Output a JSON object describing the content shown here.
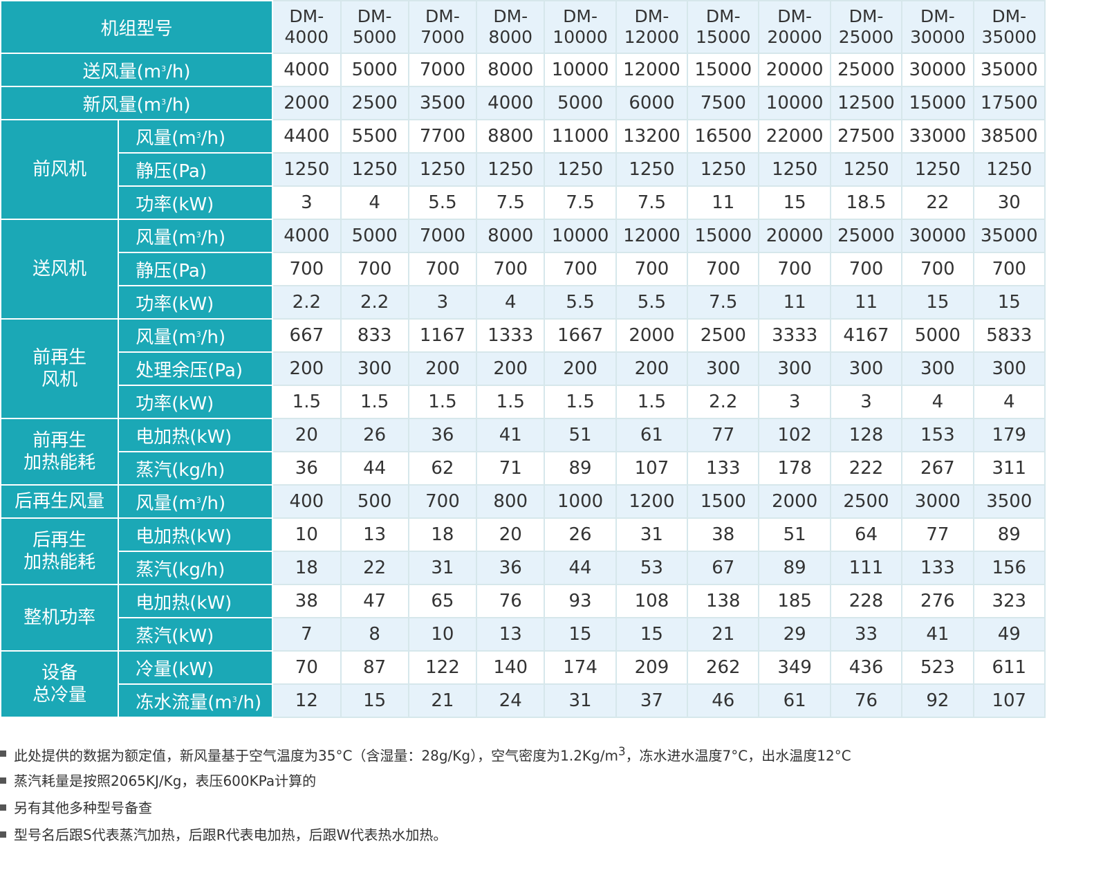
{
  "table": {
    "corner_label": "机组型号",
    "models": [
      {
        "prefix": "DM-",
        "number": "4000"
      },
      {
        "prefix": "DM-",
        "number": "5000"
      },
      {
        "prefix": "DM-",
        "number": "7000"
      },
      {
        "prefix": "DM-",
        "number": "8000"
      },
      {
        "prefix": "DM-",
        "number": "10000"
      },
      {
        "prefix": "DM-",
        "number": "12000"
      },
      {
        "prefix": "DM-",
        "number": "15000"
      },
      {
        "prefix": "DM-",
        "number": "20000"
      },
      {
        "prefix": "DM-",
        "number": "25000"
      },
      {
        "prefix": "DM-",
        "number": "30000"
      },
      {
        "prefix": "DM-",
        "number": "35000"
      }
    ],
    "rows": [
      {
        "label": "送风量(m³/h)",
        "shade": false,
        "values": [
          "4000",
          "5000",
          "7000",
          "8000",
          "10000",
          "12000",
          "15000",
          "20000",
          "25000",
          "30000",
          "35000"
        ]
      },
      {
        "label": "新风量(m³/h)",
        "shade": true,
        "values": [
          "2000",
          "2500",
          "3500",
          "4000",
          "5000",
          "6000",
          "7500",
          "10000",
          "12500",
          "15000",
          "17500"
        ]
      },
      {
        "group": "前风机",
        "label": "风量(m³/h)",
        "shade": false,
        "values": [
          "4400",
          "5500",
          "7700",
          "8800",
          "11000",
          "13200",
          "16500",
          "22000",
          "27500",
          "33000",
          "38500"
        ]
      },
      {
        "group": "前风机",
        "label": "静压(Pa)",
        "shade": true,
        "values": [
          "1250",
          "1250",
          "1250",
          "1250",
          "1250",
          "1250",
          "1250",
          "1250",
          "1250",
          "1250",
          "1250"
        ]
      },
      {
        "group": "前风机",
        "label": "功率(kW)",
        "shade": false,
        "values": [
          "3",
          "4",
          "5.5",
          "7.5",
          "7.5",
          "7.5",
          "11",
          "15",
          "18.5",
          "22",
          "30"
        ]
      },
      {
        "group": "送风机",
        "label": "风量(m³/h)",
        "shade": true,
        "values": [
          "4000",
          "5000",
          "7000",
          "8000",
          "10000",
          "12000",
          "15000",
          "20000",
          "25000",
          "30000",
          "35000"
        ]
      },
      {
        "group": "送风机",
        "label": "静压(Pa)",
        "shade": false,
        "values": [
          "700",
          "700",
          "700",
          "700",
          "700",
          "700",
          "700",
          "700",
          "700",
          "700",
          "700"
        ]
      },
      {
        "group": "送风机",
        "label": "功率(kW)",
        "shade": true,
        "values": [
          "2.2",
          "2.2",
          "3",
          "4",
          "5.5",
          "5.5",
          "7.5",
          "11",
          "11",
          "15",
          "15"
        ]
      },
      {
        "group": "前再生风机",
        "label": "风量(m³/h)",
        "shade": false,
        "values": [
          "667",
          "833",
          "1167",
          "1333",
          "1667",
          "2000",
          "2500",
          "3333",
          "4167",
          "5000",
          "5833"
        ]
      },
      {
        "group": "前再生风机",
        "label": "处理余压(Pa)",
        "shade": true,
        "values": [
          "200",
          "300",
          "200",
          "200",
          "200",
          "200",
          "300",
          "300",
          "300",
          "300",
          "300"
        ]
      },
      {
        "group": "前再生风机",
        "label": "功率(kW)",
        "shade": false,
        "values": [
          "1.5",
          "1.5",
          "1.5",
          "1.5",
          "1.5",
          "1.5",
          "2.2",
          "3",
          "3",
          "4",
          "4"
        ]
      },
      {
        "group": "前再生加热能耗",
        "label": "电加热(kW)",
        "shade": true,
        "values": [
          "20",
          "26",
          "36",
          "41",
          "51",
          "61",
          "77",
          "102",
          "128",
          "153",
          "179"
        ]
      },
      {
        "group": "前再生加热能耗",
        "label": "蒸汽(kg/h)",
        "shade": false,
        "values": [
          "36",
          "44",
          "62",
          "71",
          "89",
          "107",
          "133",
          "178",
          "222",
          "267",
          "311"
        ]
      },
      {
        "group": "后再生风量",
        "label": "风量(m³/h)",
        "shade": true,
        "values": [
          "400",
          "500",
          "700",
          "800",
          "1000",
          "1200",
          "1500",
          "2000",
          "2500",
          "3000",
          "3500"
        ]
      },
      {
        "group": "后再生加热能耗",
        "label": "电加热(kW)",
        "shade": false,
        "values": [
          "10",
          "13",
          "18",
          "20",
          "26",
          "31",
          "38",
          "51",
          "64",
          "77",
          "89"
        ]
      },
      {
        "group": "后再生加热能耗",
        "label": "蒸汽(kg/h)",
        "shade": true,
        "values": [
          "18",
          "22",
          "31",
          "36",
          "44",
          "53",
          "67",
          "89",
          "111",
          "133",
          "156"
        ]
      },
      {
        "group": "整机功率",
        "label": "电加热(kW)",
        "shade": false,
        "values": [
          "38",
          "47",
          "65",
          "76",
          "93",
          "108",
          "138",
          "185",
          "228",
          "276",
          "323"
        ]
      },
      {
        "group": "整机功率",
        "label": "蒸汽(kW)",
        "shade": true,
        "values": [
          "7",
          "8",
          "10",
          "13",
          "15",
          "15",
          "21",
          "29",
          "33",
          "41",
          "49"
        ]
      },
      {
        "group": "设备总冷量",
        "label": "冷量(kW)",
        "shade": false,
        "values": [
          "70",
          "87",
          "122",
          "140",
          "174",
          "209",
          "262",
          "349",
          "436",
          "523",
          "611"
        ]
      },
      {
        "group": "设备总冷量",
        "label": "冻水流量(m³/h)",
        "shade": true,
        "values": [
          "12",
          "15",
          "21",
          "24",
          "31",
          "37",
          "46",
          "61",
          "76",
          "92",
          "107"
        ]
      }
    ],
    "groups": [
      {
        "name": "前风机",
        "lines": [
          "前风机"
        ]
      },
      {
        "name": "送风机",
        "lines": [
          "送风机"
        ]
      },
      {
        "name": "前再生风机",
        "lines": [
          "前再生",
          "风机"
        ]
      },
      {
        "name": "前再生加热能耗",
        "lines": [
          "前再生",
          "加热能耗"
        ]
      },
      {
        "name": "后再生风量",
        "lines": [
          "后再生风量"
        ]
      },
      {
        "name": "后再生加热能耗",
        "lines": [
          "后再生",
          "加热能耗"
        ]
      },
      {
        "name": "整机功率",
        "lines": [
          "整机功率"
        ]
      },
      {
        "name": "设备总冷量",
        "lines": [
          "设备",
          "总冷量"
        ]
      }
    ]
  },
  "notes": [
    "此处提供的数据为额定值，新风量基于空气温度为35°C（含湿量：28g/Kg），空气密度为1.2Kg/m³，冻水进水温度7°C，出水温度12°C",
    "蒸汽耗量是按照2065KJ/Kg，表压600KPa计算的",
    "另有其他多种型号备查",
    "型号名后跟S代表蒸汽加热，后跟R代表电加热，后跟W代表热水加热。"
  ],
  "colors": {
    "header_teal": "#1ba8b6",
    "shade_row": "#e6f2fa",
    "grid_line": "#d6e7eb",
    "text": "#333333"
  }
}
